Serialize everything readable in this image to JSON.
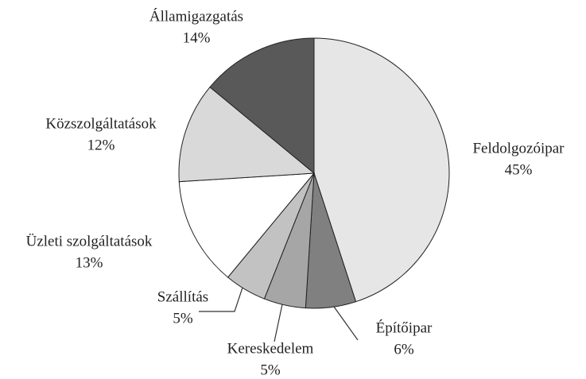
{
  "chart_data": {
    "type": "pie",
    "categories": [
      "Feldolgozóipar",
      "Építőipar",
      "Kereskedelem",
      "Szállítás",
      "Üzleti szolgáltatások",
      "Közszolgáltatások",
      "Államigazgatás"
    ],
    "values": [
      45,
      6,
      5,
      5,
      13,
      12,
      14
    ],
    "value_labels": [
      "45%",
      "6%",
      "5%",
      "5%",
      "13%",
      "12%",
      "14%"
    ],
    "colors": [
      "#e6e6e6",
      "#808080",
      "#a6a6a6",
      "#c2c2c2",
      "#ffffff",
      "#d9d9d9",
      "#595959"
    ]
  }
}
